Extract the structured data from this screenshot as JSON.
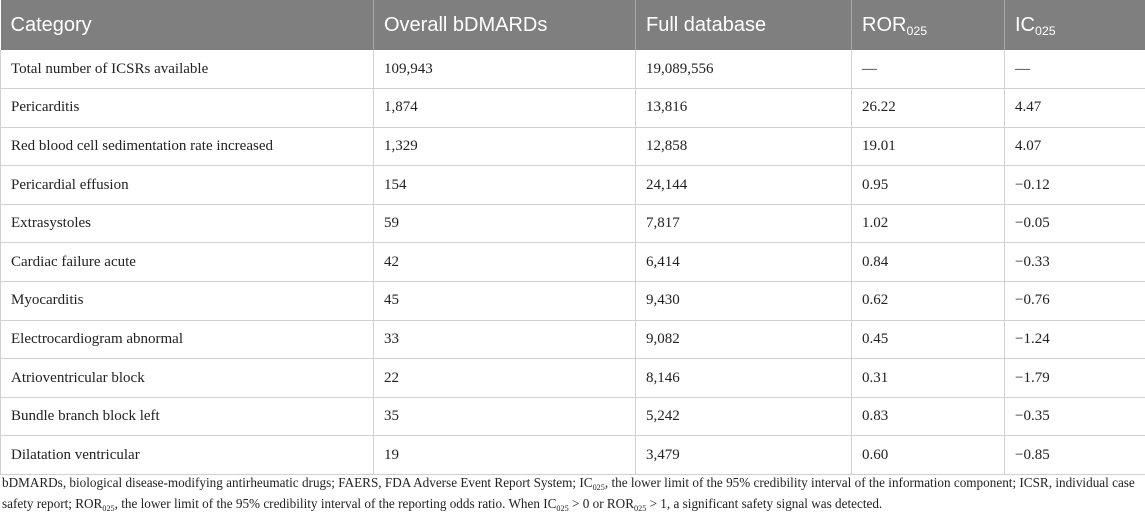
{
  "table": {
    "headers": {
      "category": "Category",
      "overall": "Overall bDMARDs",
      "full": "Full database",
      "ror_base": "ROR",
      "ror_sub": "025",
      "ic_base": "IC",
      "ic_sub": "025"
    },
    "rows": [
      {
        "category": "Total number of ICSRs available",
        "overall": "109,943",
        "full": "19,089,556",
        "ror": "—",
        "ic": "—"
      },
      {
        "category": "Pericarditis",
        "overall": "1,874",
        "full": "13,816",
        "ror": "26.22",
        "ic": "4.47"
      },
      {
        "category": "Red blood cell sedimentation rate increased",
        "overall": "1,329",
        "full": "12,858",
        "ror": "19.01",
        "ic": "4.07"
      },
      {
        "category": "Pericardial effusion",
        "overall": "154",
        "full": "24,144",
        "ror": "0.95",
        "ic": "−0.12"
      },
      {
        "category": "Extrasystoles",
        "overall": "59",
        "full": "7,817",
        "ror": "1.02",
        "ic": "−0.05"
      },
      {
        "category": "Cardiac failure acute",
        "overall": "42",
        "full": "6,414",
        "ror": "0.84",
        "ic": "−0.33"
      },
      {
        "category": "Myocarditis",
        "overall": "45",
        "full": "9,430",
        "ror": "0.62",
        "ic": "−0.76"
      },
      {
        "category": "Electrocardiogram abnormal",
        "overall": "33",
        "full": "9,082",
        "ror": "0.45",
        "ic": "−1.24"
      },
      {
        "category": "Atrioventricular block",
        "overall": "22",
        "full": "8,146",
        "ror": "0.31",
        "ic": "−1.79"
      },
      {
        "category": "Bundle branch block left",
        "overall": "35",
        "full": "5,242",
        "ror": "0.83",
        "ic": "−0.35"
      },
      {
        "category": "Dilatation ventricular",
        "overall": "19",
        "full": "3,479",
        "ror": "0.60",
        "ic": "−0.85"
      }
    ]
  },
  "footnote": {
    "p1": "bDMARDs, biological disease-modifying antirheumatic drugs; FAERS, FDA Adverse Event Report System; IC",
    "sub1": "025",
    "p2": ", the lower limit of the 95% credibility interval of the information component; ICSR, individual case safety report; ROR",
    "sub2": "025",
    "p3": ", the lower limit of the 95% credibility interval of the reporting odds ratio. When IC",
    "sub3": "025",
    "p4": " > 0 or ROR",
    "sub4": "025",
    "p5": " > 1, a significant safety signal was detected."
  }
}
